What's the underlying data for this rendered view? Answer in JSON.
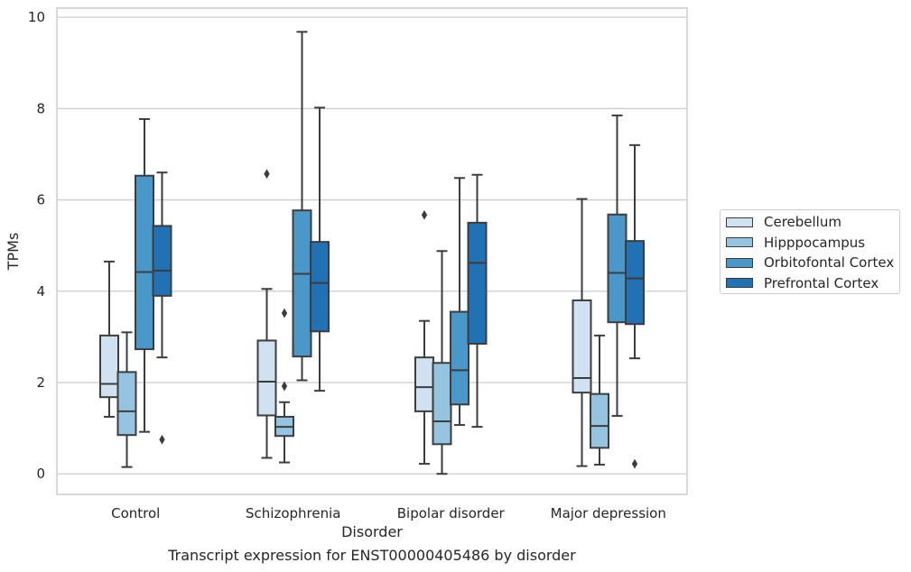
{
  "chart_data": {
    "type": "box",
    "xlabel": "Disorder",
    "ylabel": "TPMs",
    "caption": "Transcript expression for ENST00000405486 by disorder",
    "ylim": [
      -0.45,
      10.2
    ],
    "yticks": [
      0,
      2,
      4,
      6,
      8,
      10
    ],
    "grid": "horizontal",
    "legend_position": "right",
    "categories": [
      "Control",
      "Schizophrenia",
      "Bipolar disorder",
      "Major depression"
    ],
    "series": [
      {
        "name": "Cerebellum",
        "color": "#d0e1f2",
        "boxes": [
          {
            "whisker_low": 1.25,
            "q1": 1.68,
            "median": 1.97,
            "q3": 3.03,
            "whisker_high": 4.65,
            "outliers": []
          },
          {
            "whisker_low": 0.35,
            "q1": 1.28,
            "median": 2.02,
            "q3": 2.92,
            "whisker_high": 4.05,
            "outliers": [
              6.57
            ]
          },
          {
            "whisker_low": 0.22,
            "q1": 1.37,
            "median": 1.9,
            "q3": 2.55,
            "whisker_high": 3.35,
            "outliers": [
              5.67
            ]
          },
          {
            "whisker_low": 0.17,
            "q1": 1.78,
            "median": 2.1,
            "q3": 3.8,
            "whisker_high": 6.02,
            "outliers": []
          }
        ]
      },
      {
        "name": "Hipppocampus",
        "color": "#94c4df",
        "boxes": [
          {
            "whisker_low": 0.15,
            "q1": 0.85,
            "median": 1.37,
            "q3": 2.23,
            "whisker_high": 3.1,
            "outliers": []
          },
          {
            "whisker_low": 0.25,
            "q1": 0.83,
            "median": 1.03,
            "q3": 1.25,
            "whisker_high": 1.57,
            "outliers": [
              1.92,
              3.52
            ]
          },
          {
            "whisker_low": 0.0,
            "q1": 0.65,
            "median": 1.15,
            "q3": 2.43,
            "whisker_high": 4.88,
            "outliers": []
          },
          {
            "whisker_low": 0.2,
            "q1": 0.57,
            "median": 1.05,
            "q3": 1.75,
            "whisker_high": 3.03,
            "outliers": []
          }
        ]
      },
      {
        "name": "Orbitofontal Cortex",
        "color": "#4a98c9",
        "boxes": [
          {
            "whisker_low": 0.92,
            "q1": 2.73,
            "median": 4.42,
            "q3": 6.53,
            "whisker_high": 7.77,
            "outliers": []
          },
          {
            "whisker_low": 2.05,
            "q1": 2.57,
            "median": 4.38,
            "q3": 5.77,
            "whisker_high": 9.68,
            "outliers": []
          },
          {
            "whisker_low": 1.07,
            "q1": 1.52,
            "median": 2.27,
            "q3": 3.55,
            "whisker_high": 6.48,
            "outliers": []
          },
          {
            "whisker_low": 1.27,
            "q1": 3.32,
            "median": 4.4,
            "q3": 5.68,
            "whisker_high": 7.85,
            "outliers": []
          }
        ]
      },
      {
        "name": "Prefrontal Cortex",
        "color": "#2171b5",
        "boxes": [
          {
            "whisker_low": 2.55,
            "q1": 3.9,
            "median": 4.45,
            "q3": 5.43,
            "whisker_high": 6.6,
            "outliers": [
              0.75
            ]
          },
          {
            "whisker_low": 1.82,
            "q1": 3.12,
            "median": 4.18,
            "q3": 5.08,
            "whisker_high": 8.02,
            "outliers": []
          },
          {
            "whisker_low": 1.03,
            "q1": 2.85,
            "median": 4.62,
            "q3": 5.5,
            "whisker_high": 6.55,
            "outliers": []
          },
          {
            "whisker_low": 2.53,
            "q1": 3.28,
            "median": 4.28,
            "q3": 5.1,
            "whisker_high": 7.2,
            "outliers": [
              0.22
            ]
          }
        ]
      }
    ]
  }
}
